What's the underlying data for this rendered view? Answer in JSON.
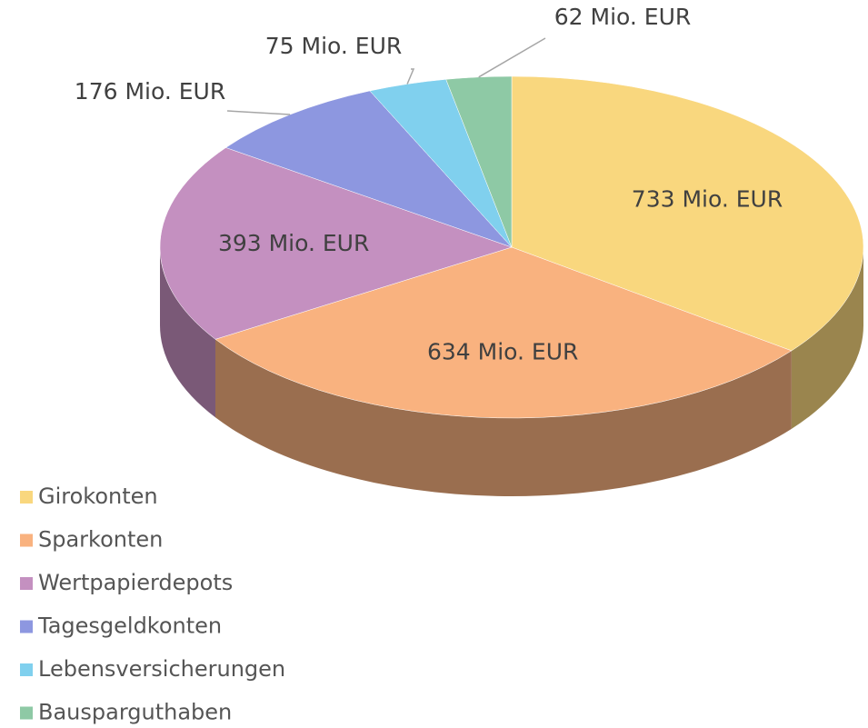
{
  "chart_data": {
    "type": "pie3d",
    "categories": [
      "Girokonten",
      "Sparkonten",
      "Wertpapierdepots",
      "Tagesgeldkonten",
      "Lebensversicherungen",
      "Bausparguthaben"
    ],
    "values": [
      733,
      634,
      393,
      176,
      75,
      62
    ],
    "value_labels": [
      "733 Mio. EUR",
      "634 Mio. EUR",
      "393 Mio. EUR",
      "176 Mio. EUR",
      "75 Mio. EUR",
      "62 Mio. EUR"
    ],
    "colors": [
      "#f9d77e",
      "#f9b27f",
      "#c490c0",
      "#8d97e0",
      "#80d0ee",
      "#8ec9a5"
    ],
    "legend": "bottom-left"
  }
}
